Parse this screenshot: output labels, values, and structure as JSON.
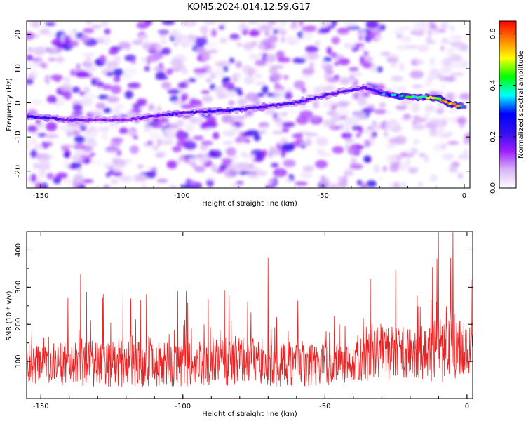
{
  "title": "KOM5.2024.014.12.59.G17",
  "chart_data": [
    {
      "type": "heatmap",
      "xlabel": "Height of straight line (km)",
      "ylabel": "Frequency (Hz)",
      "xlim": [
        -155,
        2
      ],
      "ylim": [
        -25,
        24
      ],
      "xticks": [
        "-150",
        "-100",
        "-50",
        "0"
      ],
      "xtick_values": [
        -150,
        -100,
        -50,
        0
      ],
      "yticks": [
        "20",
        "10",
        "0",
        "-10",
        "-20"
      ],
      "ytick_values": [
        20,
        10,
        0,
        -10,
        -20
      ],
      "colorbar": {
        "label": "Normalized spectral amplitude",
        "range": [
          0,
          0.65
        ],
        "ticks": [
          "0.0",
          "0.2",
          "0.4",
          "0.6"
        ],
        "tick_values": [
          0,
          0.2,
          0.4,
          0.6
        ],
        "colormap": [
          "#ffffff",
          "#d8b4f8",
          "#9c1cff",
          "#3010f0",
          "#0000ff",
          "#00ffff",
          "#00ff00",
          "#ffff00",
          "#ff8000",
          "#ff0000"
        ]
      },
      "ridge": {
        "x": [
          -155,
          -140,
          -120,
          -100,
          -80,
          -60,
          -45,
          -35,
          -28,
          -20,
          -10,
          -3,
          0
        ],
        "y": [
          -4,
          -5,
          -5,
          -3,
          -2,
          0,
          3,
          4.5,
          2.5,
          1.8,
          1.5,
          -0.8,
          -1
        ],
        "peak_amplitude": [
          0.28,
          0.2,
          0.18,
          0.22,
          0.25,
          0.22,
          0.22,
          0.2,
          0.35,
          0.45,
          0.55,
          0.65,
          0.4
        ]
      }
    },
    {
      "type": "line",
      "xlabel": "Height of straight line (km)",
      "ylabel": "SNR (10 * v/v)",
      "xlim": [
        -155,
        2
      ],
      "ylim": [
        0,
        450
      ],
      "xticks": [
        "-150",
        "-100",
        "-50",
        "0"
      ],
      "xtick_values": [
        -150,
        -100,
        -50,
        0
      ],
      "yticks": [
        "400",
        "300",
        "200",
        "100"
      ],
      "ytick_values": [
        400,
        300,
        200,
        100
      ],
      "series": [
        {
          "color": "#ee2222",
          "samples": 1200,
          "envelope_x": [
            -155,
            -130,
            -100,
            -80,
            -60,
            -40,
            -30,
            -20,
            -10,
            0,
            2
          ],
          "typical_low": [
            40,
            30,
            30,
            35,
            30,
            40,
            50,
            50,
            40,
            60,
            70
          ],
          "typical_high": [
            230,
            260,
            250,
            280,
            250,
            240,
            330,
            310,
            360,
            330,
            320
          ],
          "peaks": [
            {
              "x": -136,
              "y": 335
            },
            {
              "x": -70,
              "y": 380
            },
            {
              "x": -10,
              "y": 450
            },
            {
              "x": -5,
              "y": 450
            },
            {
              "x": 1.5,
              "y": 320
            }
          ]
        }
      ]
    }
  ]
}
